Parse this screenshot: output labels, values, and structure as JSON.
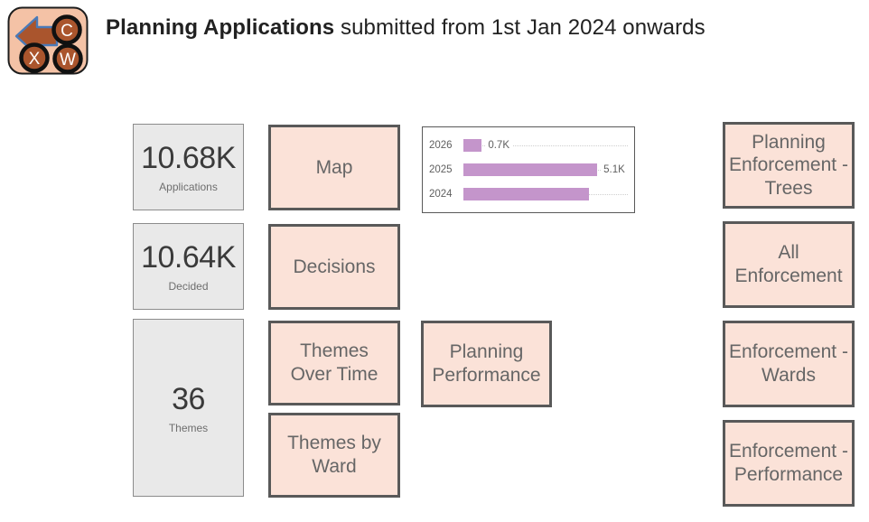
{
  "header": {
    "title_bold": "Planning Applications",
    "title_rest": " submitted from 1st Jan 2024 onwards",
    "logo_letters": [
      "C",
      "X",
      "W"
    ]
  },
  "kpis": [
    {
      "value": "10.68K",
      "label": "Applications"
    },
    {
      "value": "10.64K",
      "label": "Decided"
    },
    {
      "value": "36",
      "label": "Themes"
    }
  ],
  "nav": {
    "map": "Map",
    "decisions": "Decisions",
    "themes_over_time": "Themes Over Time",
    "themes_by_ward": "Themes by Ward",
    "planning_performance": "Planning Performance",
    "enforcement_trees": "Planning Enforcement - Trees",
    "all_enforcement": "All Enforcement",
    "enforcement_wards": "Enforcement - Wards",
    "enforcement_performance": "Enforcement - Performance"
  },
  "chart_data": {
    "type": "bar",
    "orientation": "horizontal",
    "title": "",
    "categories": [
      "2026",
      "2025",
      "2024"
    ],
    "values": [
      0.7,
      5.1,
      4.8
    ],
    "value_labels": [
      "0.7K",
      "5.1K",
      ""
    ],
    "units": "K (thousands of applications)",
    "xlim": [
      0,
      6.3
    ],
    "grid": "dotted-row-leaders",
    "legend": "none",
    "bar_color": "#c495cb"
  },
  "colors": {
    "button_bg": "#fbe2d8",
    "button_border": "#595959",
    "button_text": "#666666",
    "kpi_bg": "#e9e9e9",
    "kpi_border": "#8c8c8c",
    "bar_purple": "#c495cb",
    "logo_bg": "#f4c2a6",
    "logo_brown": "#aa552d",
    "logo_arrow_outline": "#4a7ab8"
  }
}
